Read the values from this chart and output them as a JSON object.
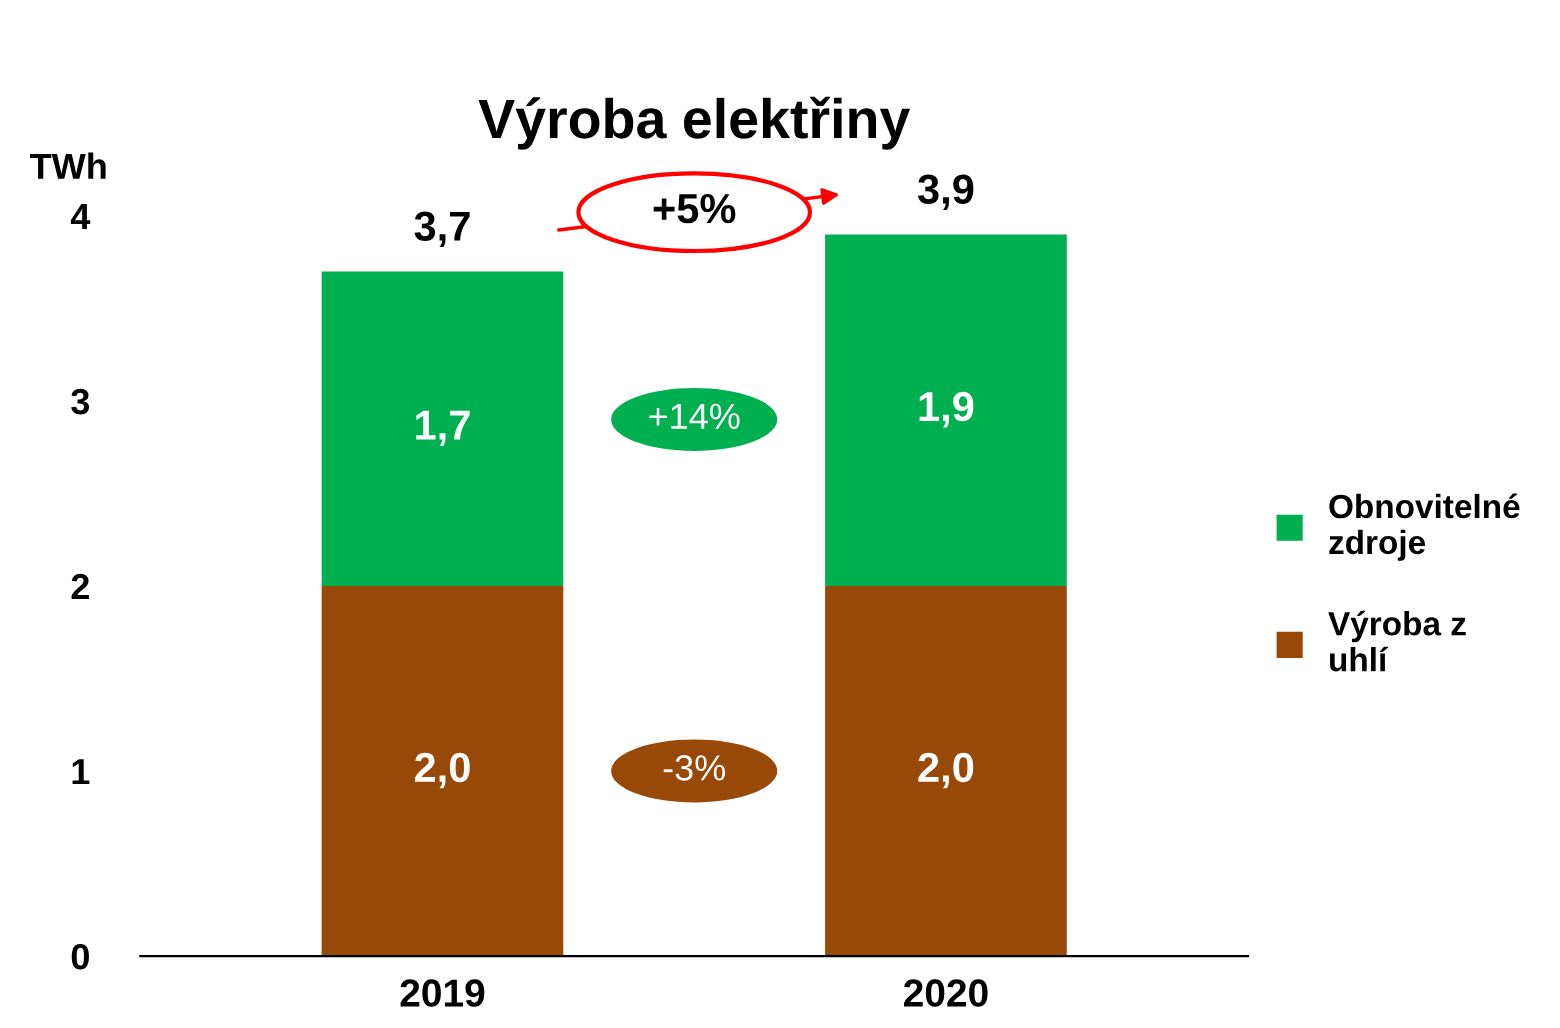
{
  "chart_data": {
    "type": "bar",
    "title": "Výroba elektřiny",
    "ylabel": "TWh",
    "categories": [
      "2019",
      "2020"
    ],
    "stacked": true,
    "series": [
      {
        "name": "Výroba z uhlí",
        "color": "#984807",
        "values": [
          2.0,
          2.0
        ],
        "value_labels": [
          "2,0",
          "2,0"
        ]
      },
      {
        "name": "Obnovitelné zdroje",
        "color": "#00b050",
        "values": [
          1.7,
          1.9
        ],
        "value_labels": [
          "1,7",
          "1,9"
        ]
      }
    ],
    "totals": [
      "3,7",
      "3,9"
    ],
    "annotations": [
      "+5%",
      "+14%",
      "-3%"
    ],
    "ylim": [
      0,
      4
    ],
    "yticks": [
      0,
      1,
      2,
      3,
      4
    ],
    "grid": false,
    "legend": "right"
  }
}
